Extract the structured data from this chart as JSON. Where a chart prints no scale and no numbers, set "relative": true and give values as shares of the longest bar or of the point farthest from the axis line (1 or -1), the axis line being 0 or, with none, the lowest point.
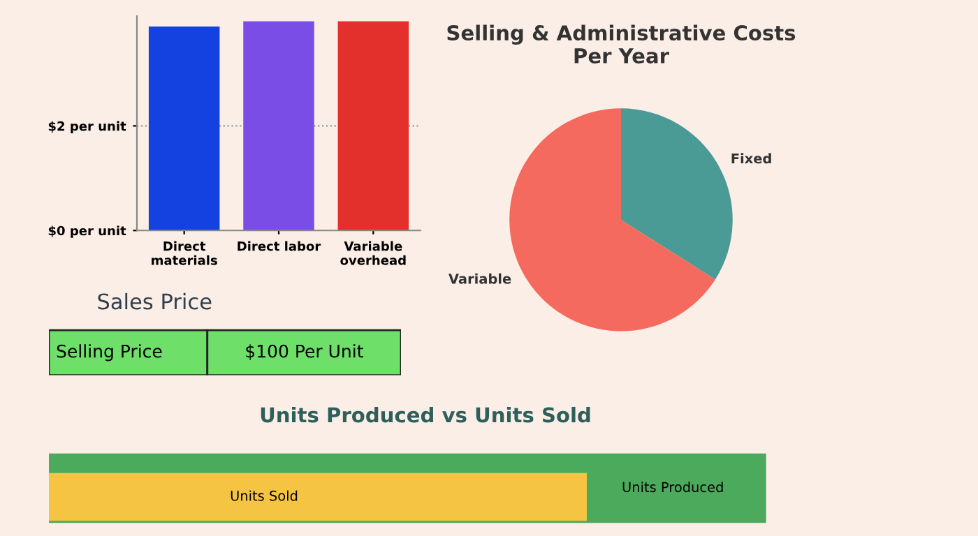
{
  "chart_data": [
    {
      "type": "bar",
      "categories": [
        "Direct materials",
        "Direct labor",
        "Variable overhead"
      ],
      "values": [
        3.9,
        4.0,
        4.0
      ],
      "colors": [
        "#1442e0",
        "#7a4ee6",
        "#e4302c"
      ],
      "ylim": [
        0,
        4.1
      ],
      "yticks": [
        {
          "value": 0,
          "label": "$0 per unit"
        },
        {
          "value": 2,
          "label": "$2 per unit"
        }
      ],
      "grid": "y",
      "legend": false
    },
    {
      "type": "pie",
      "title": "Selling & Administrative Costs\nPer Year",
      "categories": [
        "Fixed",
        "Variable"
      ],
      "values": [
        34,
        66
      ],
      "colors": [
        "#4a9a96",
        "#f46a5e"
      ],
      "legend": false
    },
    {
      "type": "other",
      "title": "Sales Price",
      "annotations": [
        "Selling Price",
        "$100 Per Unit"
      ]
    },
    {
      "type": "bar",
      "title": "Units Produced vs Units Sold",
      "orientation": "horizontal",
      "relative": true,
      "categories": [
        null
      ],
      "series": [
        {
          "name": "Units Produced",
          "color": "#4caa5c",
          "values": [
            1
          ]
        },
        {
          "name": "Units Sold",
          "color": "#f5c443",
          "values": [
            0.75
          ]
        }
      ],
      "tick_labels": false,
      "legend": false
    }
  ]
}
